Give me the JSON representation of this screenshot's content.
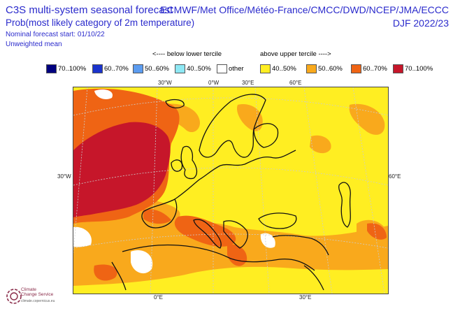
{
  "header": {
    "title": "C3S multi-system seasonal forecast",
    "subtitle": "Prob(most likely category of 2m temperature)",
    "nominal_start": "Nominal forecast start: 01/10/22",
    "weighting": "Unweighted mean",
    "providers": "ECMWF/Met Office/Météo-France/CMCC/DWD/NCEP/JMA/ECCC",
    "season": "DJF 2022/23"
  },
  "legend": {
    "below_label": "<---- below lower tercile",
    "above_label": "above upper tercile ---->",
    "items": [
      {
        "label": "70..100%",
        "color": "#00007f"
      },
      {
        "label": "60..70%",
        "color": "#1a33cc"
      },
      {
        "label": "50..60%",
        "color": "#5c9cf0"
      },
      {
        "label": "40..50%",
        "color": "#8ee8f4"
      },
      {
        "label": "other",
        "color": "#ffffff"
      },
      {
        "label": "40..50%",
        "color": "#ffee22"
      },
      {
        "label": "50..60%",
        "color": "#f9a91c"
      },
      {
        "label": "60..70%",
        "color": "#ef6414"
      },
      {
        "label": "70..100%",
        "color": "#c6162a"
      }
    ]
  },
  "axes": {
    "top": [
      "30°W",
      "0°W",
      "30°E",
      "60°E"
    ],
    "left": "30°W",
    "right": "60°E",
    "bottom": [
      "0°E",
      "30°E"
    ]
  },
  "logo": {
    "line1": "Climate",
    "line2": "Change Service",
    "line3": "climate.copernicus.eu"
  },
  "colors": {
    "text_blue": "#2b2bcc",
    "land_outline": "#111111",
    "graticule": "#cccccc"
  }
}
